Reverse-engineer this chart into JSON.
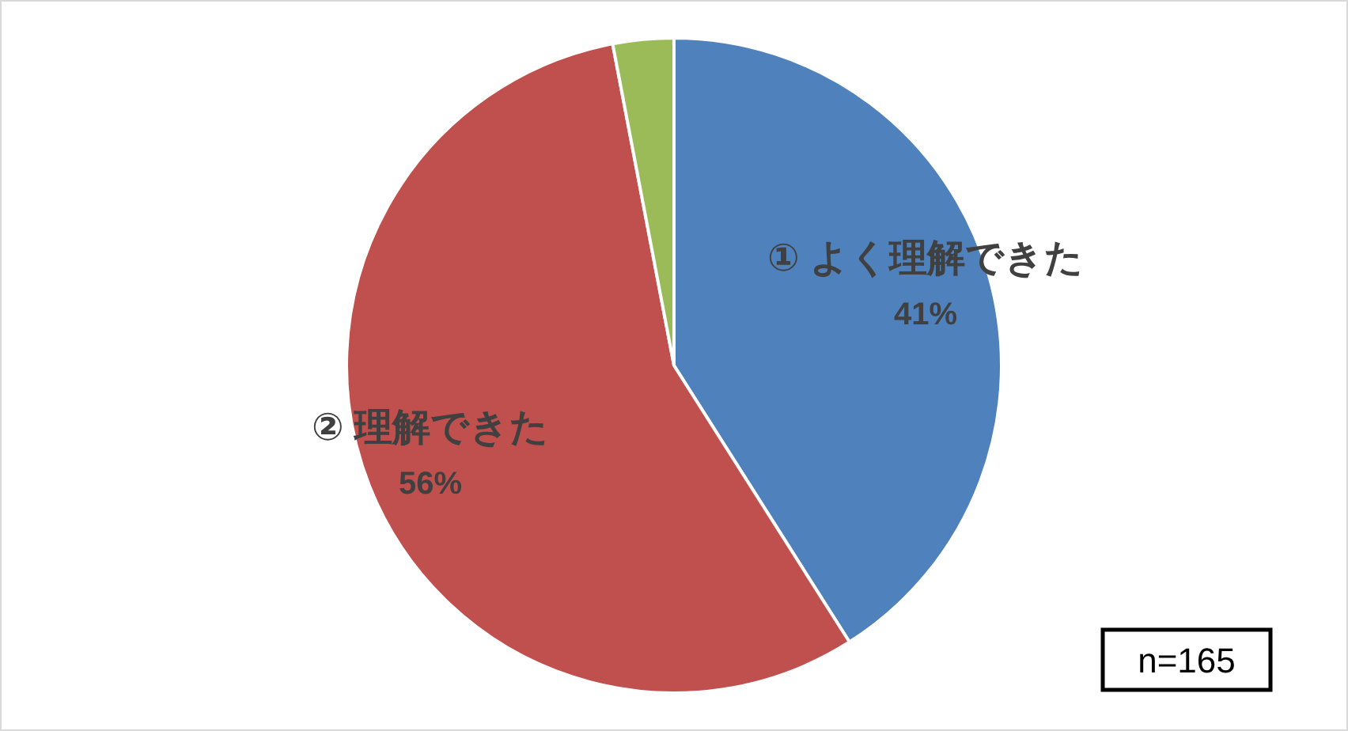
{
  "chart_data": {
    "type": "pie",
    "categories": [
      "① よく理解できた",
      "② 理解できた",
      null
    ],
    "values": [
      41,
      56,
      3
    ],
    "colors": [
      "#4f81bd",
      "#c0504d",
      "#9bbb59"
    ],
    "value_labels": [
      "41%",
      "56%",
      null
    ],
    "annotations": [
      "n=165"
    ]
  }
}
